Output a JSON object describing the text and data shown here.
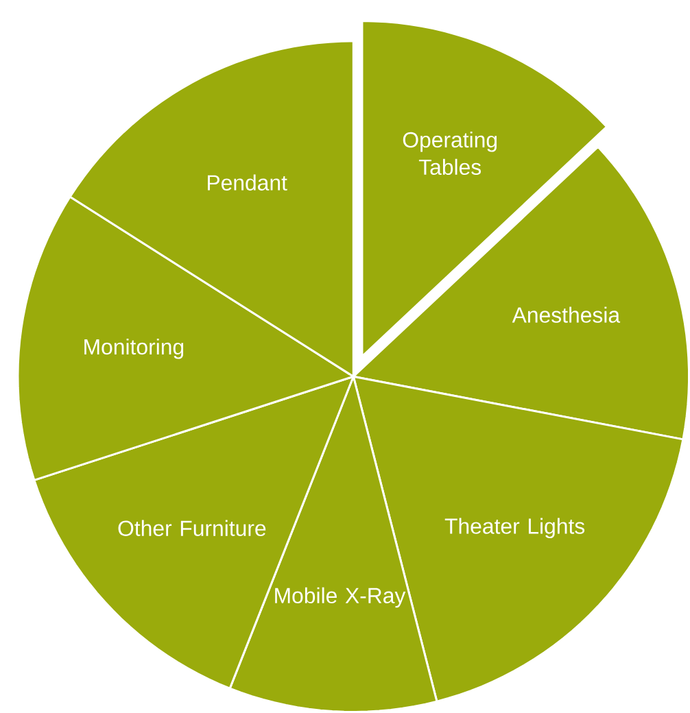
{
  "chart_data": {
    "type": "pie",
    "categories": [
      "Operating Tables",
      "Anesthesia",
      "Theater Lights",
      "Mobile X-Ray",
      "Other Furniture",
      "Monitoring",
      "Pendant"
    ],
    "values": [
      13,
      15,
      18,
      10,
      14,
      14,
      16
    ],
    "colors": [
      "#9aab0c",
      "#9aab0c",
      "#9aab0c",
      "#9aab0c",
      "#9aab0c",
      "#9aab0c",
      "#9aab0c"
    ]
  }
}
